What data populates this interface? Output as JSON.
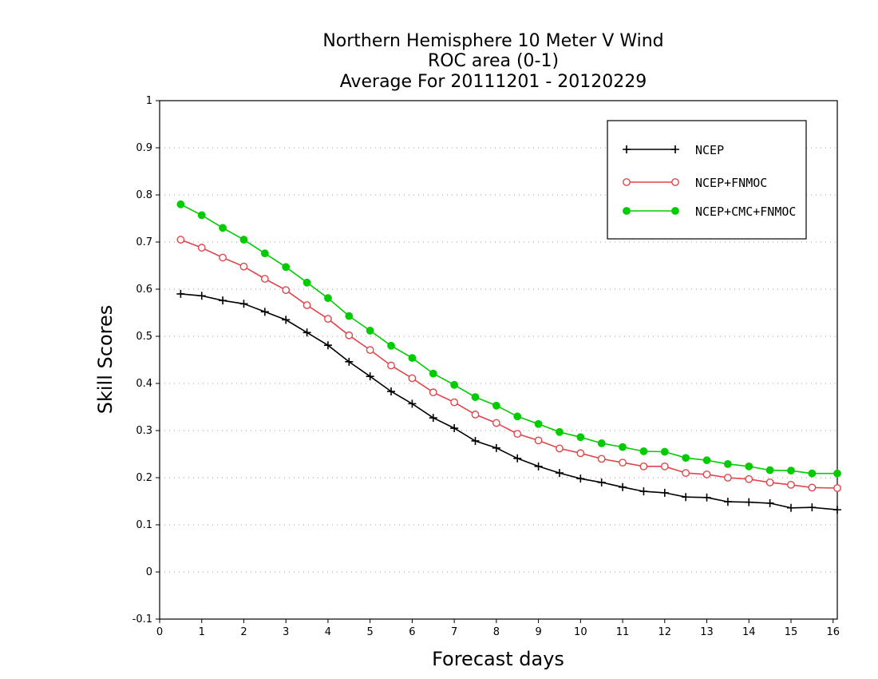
{
  "chart_data": {
    "type": "line",
    "title_lines": [
      "Northern Hemisphere 10 Meter V Wind",
      "ROC area (0-1)",
      "Average For 20111201 - 20120229"
    ],
    "xlabel": "Forecast days",
    "ylabel": "Skill Scores",
    "xlim": [
      0,
      16.1
    ],
    "ylim": [
      -0.1,
      1
    ],
    "xticks": [
      0,
      1,
      2,
      3,
      4,
      5,
      6,
      7,
      8,
      9,
      10,
      11,
      12,
      13,
      14,
      15,
      16
    ],
    "xtick_labels": [
      "0",
      "1",
      "2",
      "3",
      "4",
      "5",
      "6",
      "7",
      "8",
      "9",
      "10",
      "11",
      "12",
      "13",
      "14",
      "15",
      "16"
    ],
    "yticks": [
      -0.1,
      0,
      0.1,
      0.2,
      0.3,
      0.4,
      0.5,
      0.6,
      0.7,
      0.8,
      0.9,
      1
    ],
    "ytick_labels": [
      "-0.1",
      "0",
      "0.1",
      "0.2",
      "0.3",
      "0.4",
      "0.5",
      "0.6",
      "0.7",
      "0.8",
      "0.9",
      "1"
    ],
    "grid": "horizontal dotted",
    "legend_position": "top-right",
    "x": [
      0.5,
      1,
      1.5,
      2,
      2.5,
      3,
      3.5,
      4,
      4.5,
      5,
      5.5,
      6,
      6.5,
      7,
      7.5,
      8,
      8.5,
      9,
      9.5,
      10,
      10.5,
      11,
      11.5,
      12,
      12.5,
      13,
      13.5,
      14,
      14.5,
      15,
      15.5,
      16.1
    ],
    "series": [
      {
        "name": "NCEP",
        "color": "#000000",
        "marker": "plus",
        "values": [
          0.59,
          0.586,
          0.576,
          0.569,
          0.552,
          0.535,
          0.508,
          0.481,
          0.446,
          0.415,
          0.383,
          0.357,
          0.327,
          0.305,
          0.278,
          0.263,
          0.241,
          0.224,
          0.21,
          0.198,
          0.19,
          0.18,
          0.171,
          0.168,
          0.159,
          0.158,
          0.149,
          0.148,
          0.146,
          0.136,
          0.137,
          0.132
        ]
      },
      {
        "name": "NCEP+FNMOC",
        "color": "#e0454a",
        "marker": "open-circle",
        "values": [
          0.705,
          0.688,
          0.667,
          0.648,
          0.622,
          0.598,
          0.566,
          0.537,
          0.502,
          0.471,
          0.438,
          0.411,
          0.381,
          0.36,
          0.334,
          0.316,
          0.293,
          0.279,
          0.262,
          0.252,
          0.24,
          0.232,
          0.224,
          0.224,
          0.21,
          0.207,
          0.2,
          0.197,
          0.19,
          0.185,
          0.179,
          0.178
        ]
      },
      {
        "name": "NCEP+CMC+FNMOC",
        "color": "#00cc00",
        "marker": "filled-circle",
        "values": [
          0.78,
          0.757,
          0.73,
          0.705,
          0.676,
          0.647,
          0.614,
          0.581,
          0.543,
          0.512,
          0.48,
          0.454,
          0.421,
          0.397,
          0.371,
          0.353,
          0.33,
          0.314,
          0.297,
          0.286,
          0.273,
          0.265,
          0.256,
          0.255,
          0.242,
          0.237,
          0.229,
          0.224,
          0.216,
          0.215,
          0.209,
          0.209
        ]
      }
    ]
  }
}
